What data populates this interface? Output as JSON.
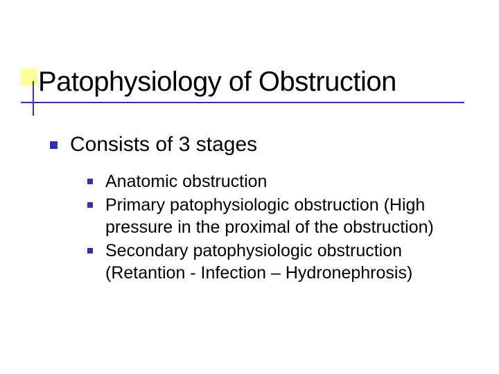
{
  "slide": {
    "title": "Patophysiology of Obstruction",
    "heading": "Consists of 3 stages",
    "bullets": [
      "Anatomic obstruction",
      "Primary patophysiologic obstruction (High pressure in the proximal of the obstruction)",
      "Secondary patophysiologic obstruction (Retantion - Infection – Hydronephrosis)"
    ],
    "colors": {
      "accent": "#333399",
      "highlight": "#ffff99",
      "text": "#000000",
      "background": "#ffffff"
    },
    "typography": {
      "title_fontsize": 40,
      "level1_fontsize": 30,
      "level2_fontsize": 25,
      "font_family": "Verdana"
    }
  }
}
